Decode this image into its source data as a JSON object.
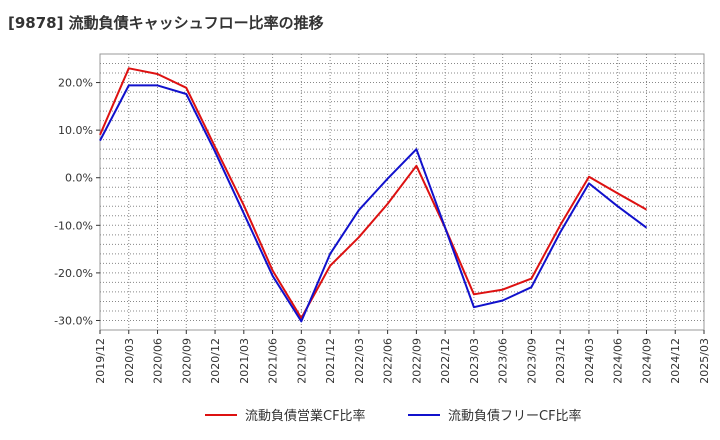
{
  "chart_data": {
    "type": "line",
    "title": "[9878]  流動負債キャッシュフロー比率の推移",
    "xlabel": "",
    "ylabel": "",
    "ylim": [
      -32,
      26
    ],
    "y_ticks": [
      "20.0%",
      "10.0%",
      "0.0%",
      "-10.0%",
      "-20.0%",
      "-30.0%"
    ],
    "y_tick_values": [
      20,
      10,
      0,
      -10,
      -20,
      -30
    ],
    "grid": true,
    "legend_position": "bottom",
    "categories": [
      "2019/12",
      "2020/03",
      "2020/06",
      "2020/09",
      "2020/12",
      "2021/03",
      "2021/06",
      "2021/09",
      "2021/12",
      "2022/03",
      "2022/06",
      "2022/09",
      "2022/12",
      "2023/03",
      "2023/06",
      "2023/09",
      "2023/12",
      "2024/03",
      "2024/06",
      "2024/09",
      "2024/12",
      "2025/03"
    ],
    "series": [
      {
        "name": "流動負債営業CF比率",
        "color": "#dd1111",
        "values": [
          9.0,
          23.0,
          21.8,
          18.9,
          6.5,
          -5.8,
          -19.5,
          -29.5,
          -18.5,
          -12.5,
          -5.5,
          2.5,
          -10.5,
          -24.5,
          -23.5,
          -21.2,
          -10.0,
          0.2,
          -3.3,
          -6.7,
          null,
          null
        ]
      },
      {
        "name": "流動負債フリーCF比率",
        "color": "#1111cc",
        "values": [
          7.8,
          19.4,
          19.4,
          17.6,
          5.5,
          -7.5,
          -20.6,
          -30.2,
          -16.0,
          -6.8,
          -0.2,
          6.0,
          -10.5,
          -27.2,
          -25.8,
          -23.0,
          -11.5,
          -1.2,
          -6.0,
          -10.5,
          null,
          null
        ]
      }
    ]
  }
}
